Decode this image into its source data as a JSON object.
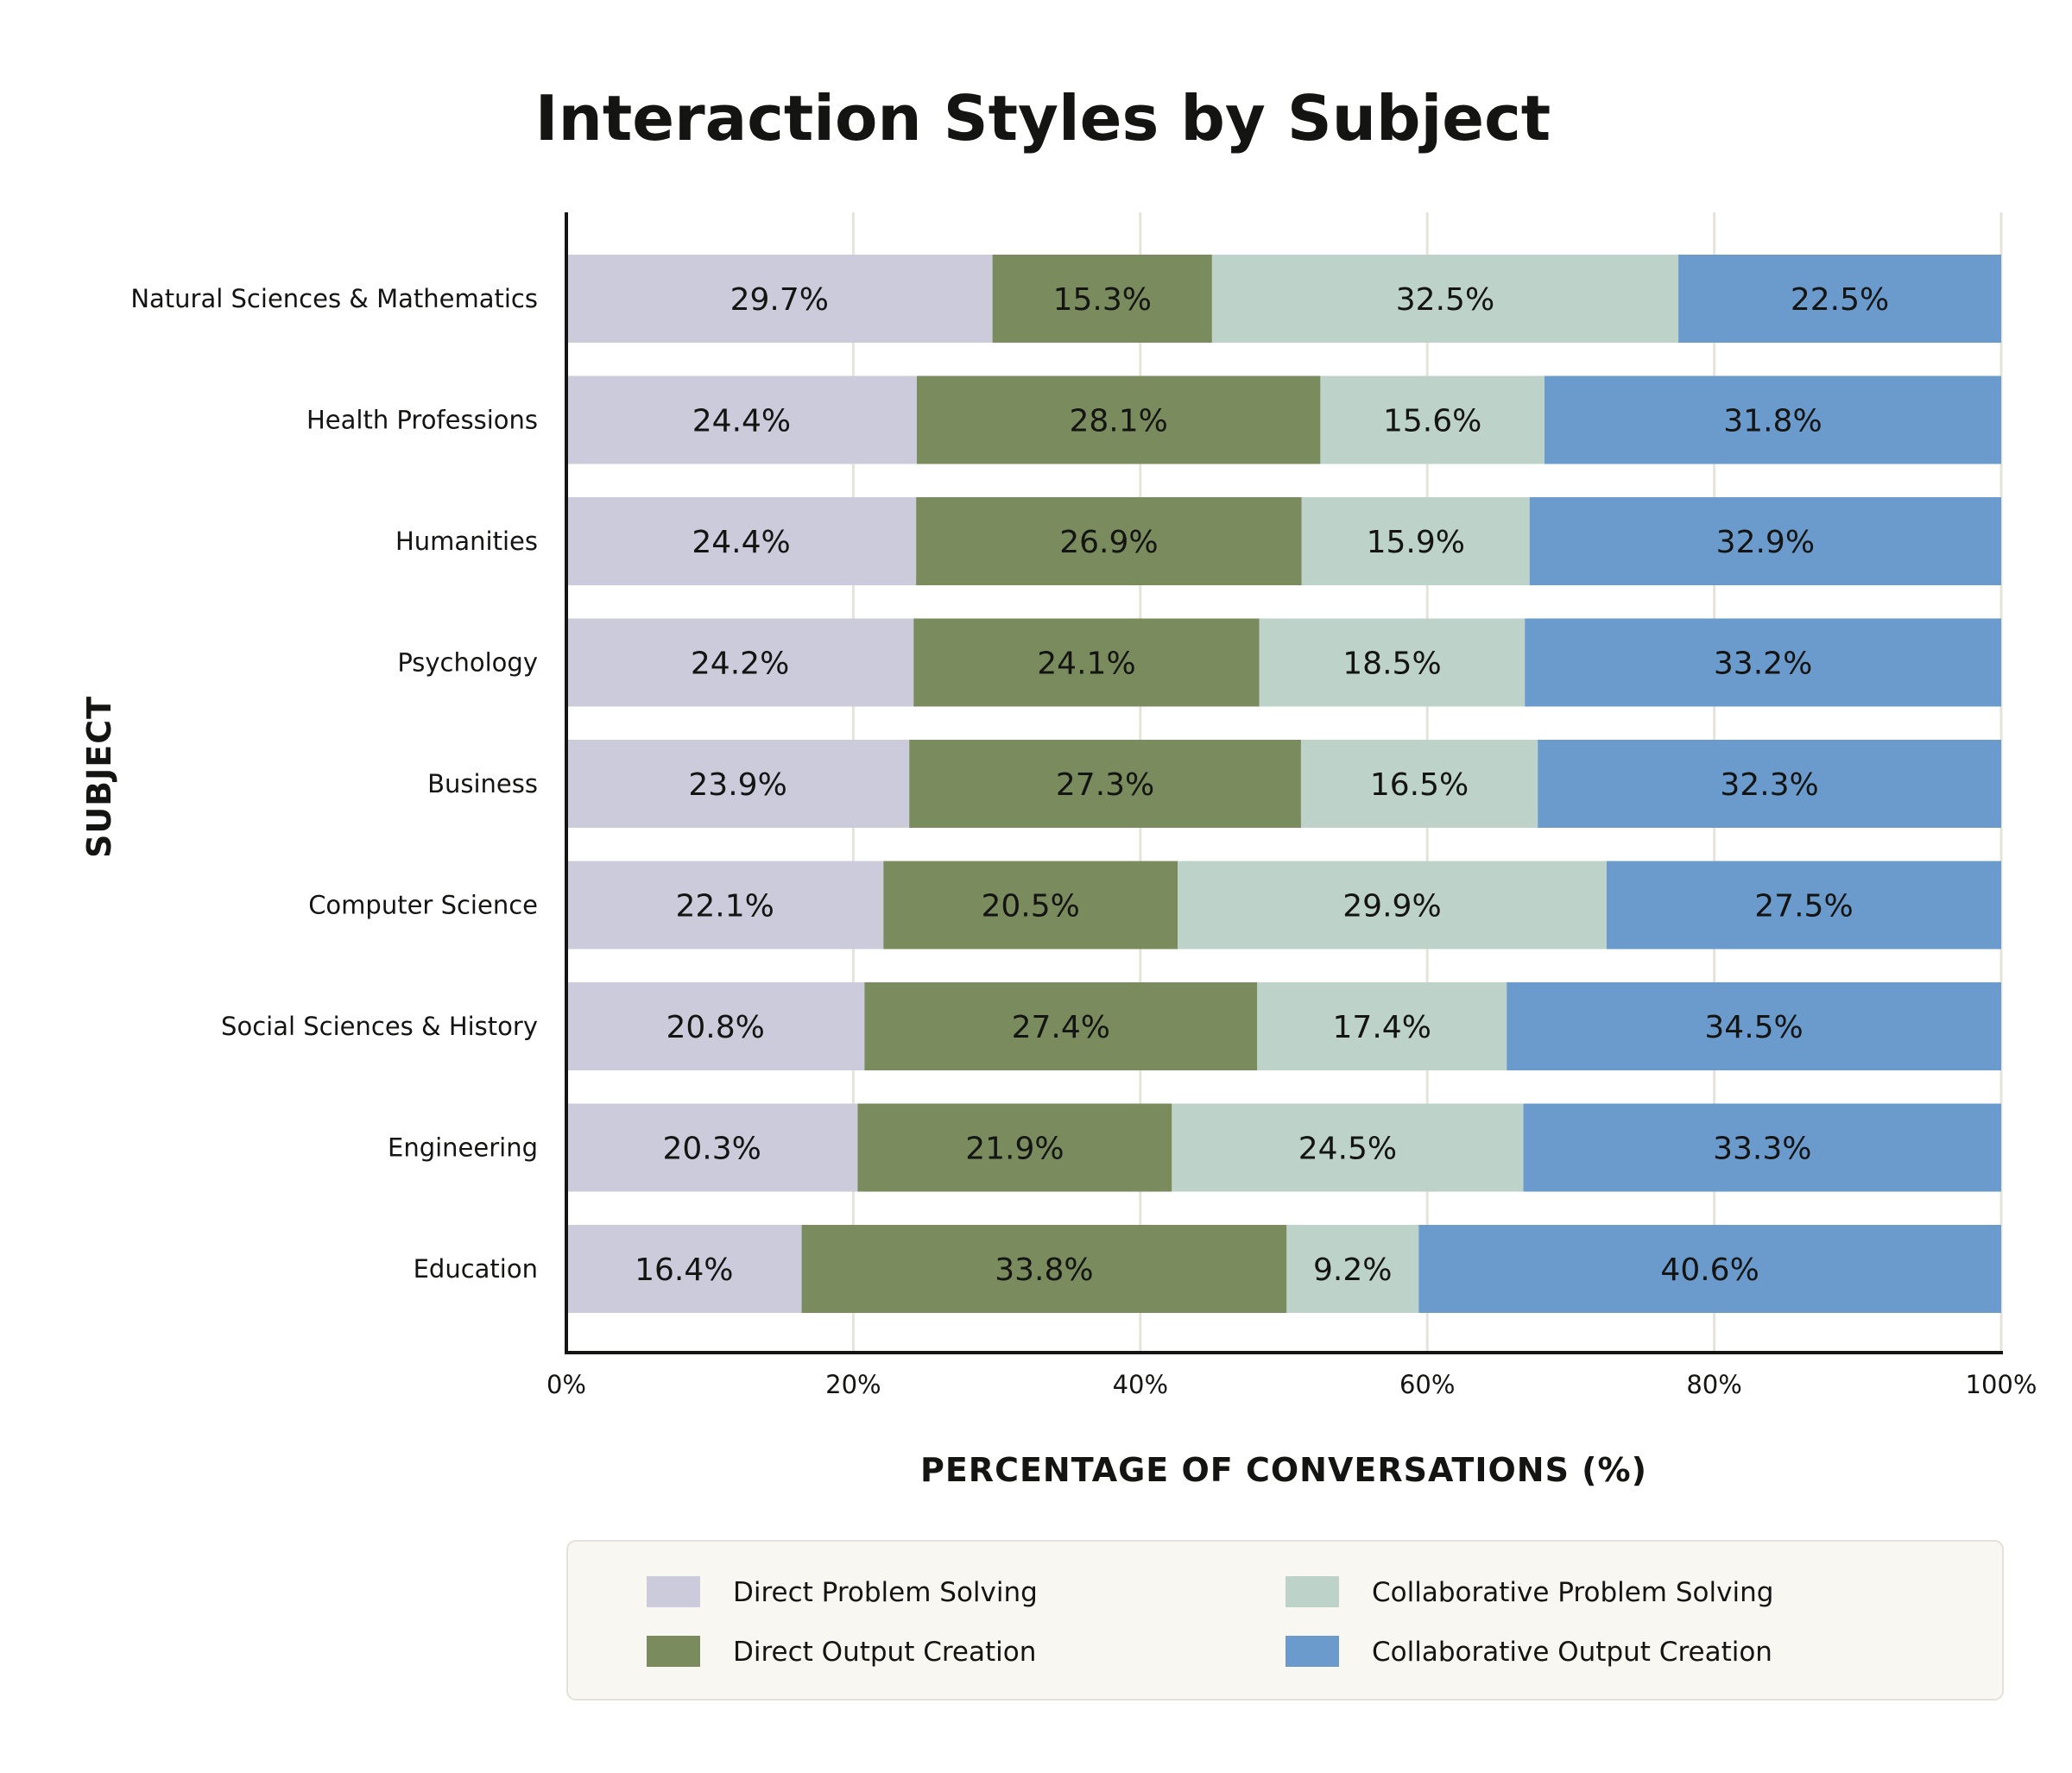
{
  "chart_data": {
    "type": "bar",
    "orientation": "horizontal",
    "stacked": true,
    "title": "Interaction Styles by Subject",
    "xlabel": "PERCENTAGE OF CONVERSATIONS (%)",
    "ylabel": "SUBJECT",
    "xlim": [
      0,
      100
    ],
    "xticks": [
      "0%",
      "20%",
      "40%",
      "60%",
      "80%",
      "100%"
    ],
    "grid": "vertical",
    "legend_position": "bottom",
    "categories": [
      "Natural Sciences & Mathematics",
      "Health Professions",
      "Humanities",
      "Psychology",
      "Business",
      "Computer Science",
      "Social Sciences & History",
      "Engineering",
      "Education"
    ],
    "series": [
      {
        "name": "Direct Problem Solving",
        "color": "#cbcbdb",
        "values": [
          29.7,
          24.4,
          24.4,
          24.2,
          23.9,
          22.1,
          20.8,
          20.3,
          16.4
        ]
      },
      {
        "name": "Direct Output Creation",
        "color": "#7a8c5e",
        "values": [
          15.3,
          28.1,
          26.9,
          24.1,
          27.3,
          20.5,
          27.4,
          21.9,
          33.8
        ]
      },
      {
        "name": "Collaborative Problem Solving",
        "color": "#bdd3ca",
        "values": [
          32.5,
          15.6,
          15.9,
          18.5,
          16.5,
          29.9,
          17.4,
          24.5,
          9.2
        ]
      },
      {
        "name": "Collaborative Output Creation",
        "color": "#6a9bcc",
        "values": [
          22.5,
          31.8,
          32.9,
          33.2,
          32.3,
          27.5,
          34.5,
          33.3,
          40.6
        ]
      }
    ],
    "legend_order": [
      0,
      2,
      1,
      3
    ]
  }
}
